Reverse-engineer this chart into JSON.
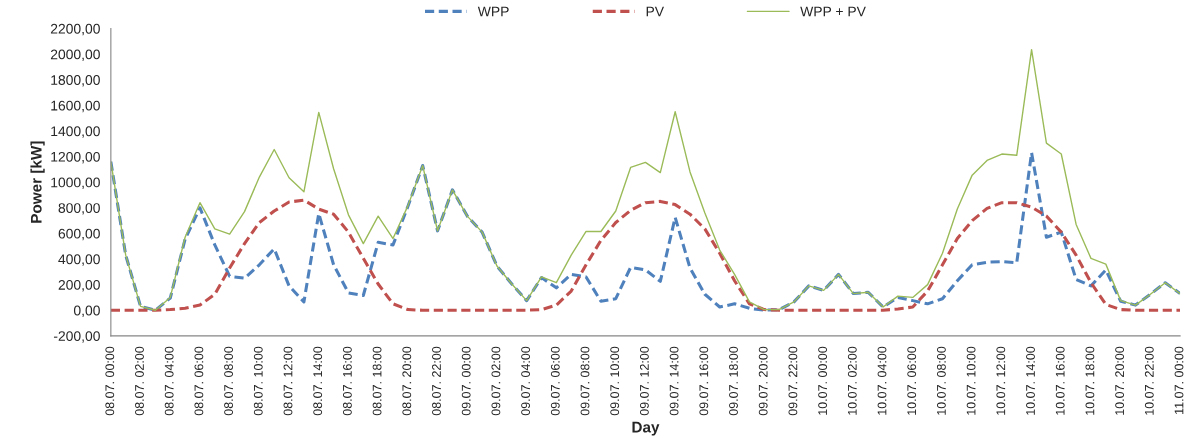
{
  "chart_data": {
    "type": "line",
    "xlabel": "Day",
    "ylabel": "Power [kW]",
    "categories": [
      "08.07. 00:00",
      null,
      "08.07. 02:00",
      null,
      "08.07. 04:00",
      null,
      "08.07. 06:00",
      null,
      "08.07. 08:00",
      null,
      "08.07. 10:00",
      null,
      "08.07. 12:00",
      null,
      "08.07. 14:00",
      null,
      "08.07. 16:00",
      null,
      "08.07. 18:00",
      null,
      "08.07. 20:00",
      null,
      "08.07. 22:00",
      null,
      "09.07. 00:00",
      null,
      "09.07. 02:00",
      null,
      "09.07. 04:00",
      null,
      "09.07. 06:00",
      null,
      "09.07. 08:00",
      null,
      "09.07. 10:00",
      null,
      "09.07. 12:00",
      null,
      "09.07. 14:00",
      null,
      "09.07. 16:00",
      null,
      "09.07. 18:00",
      null,
      "09.07. 20:00",
      null,
      "09.07. 22:00",
      null,
      "10.07. 00:00",
      null,
      "10.07. 02:00",
      null,
      "10.07. 04:00",
      null,
      "10.07. 06:00",
      null,
      "10.07. 08:00",
      null,
      "10.07. 10:00",
      null,
      "10.07. 12:00",
      null,
      "10.07. 14:00",
      null,
      "10.07. 16:00",
      null,
      "10.07. 18:00",
      null,
      "10.07. 20:00",
      null,
      "10.07. 22:00",
      null,
      "11.07. 00:00"
    ],
    "series": [
      {
        "name": "WPP",
        "color": "#4f81bd",
        "line_style": "dashed",
        "values": [
          1160,
          430,
          30,
          0,
          95,
          555,
          800,
          510,
          265,
          250,
          355,
          480,
          190,
          65,
          755,
          355,
          135,
          115,
          530,
          510,
          810,
          1130,
          620,
          940,
          735,
          610,
          345,
          205,
          75,
          255,
          175,
          280,
          260,
          70,
          90,
          335,
          315,
          225,
          725,
          330,
          125,
          25,
          50,
          15,
          0,
          5,
          65,
          190,
          155,
          280,
          130,
          140,
          25,
          100,
          75,
          50,
          90,
          230,
          355,
          375,
          380,
          370,
          1230,
          570,
          610,
          240,
          190,
          315,
          70,
          40,
          125,
          215,
          130
        ]
      },
      {
        "name": "PV",
        "color": "#c0504d",
        "line_style": "dashed",
        "values": [
          0,
          0,
          0,
          0,
          5,
          15,
          40,
          125,
          330,
          520,
          685,
          775,
          845,
          860,
          790,
          750,
          610,
          405,
          205,
          50,
          5,
          0,
          0,
          0,
          0,
          0,
          0,
          0,
          0,
          5,
          40,
          150,
          355,
          545,
          685,
          780,
          840,
          850,
          825,
          750,
          635,
          445,
          230,
          50,
          5,
          0,
          0,
          0,
          0,
          0,
          0,
          0,
          0,
          10,
          25,
          150,
          355,
          560,
          700,
          795,
          840,
          840,
          805,
          735,
          610,
          430,
          215,
          45,
          5,
          0,
          0,
          0,
          0
        ]
      },
      {
        "name": "WPP + PV",
        "color": "#9bbb59",
        "line_style": "solid",
        "values": [
          1160,
          430,
          30,
          0,
          100,
          570,
          840,
          635,
          595,
          770,
          1040,
          1255,
          1035,
          925,
          1545,
          1105,
          745,
          520,
          735,
          560,
          815,
          1130,
          620,
          940,
          735,
          610,
          345,
          205,
          75,
          260,
          215,
          430,
          615,
          615,
          775,
          1115,
          1155,
          1075,
          1550,
          1080,
          760,
          470,
          280,
          65,
          5,
          5,
          65,
          190,
          155,
          280,
          130,
          140,
          25,
          110,
          100,
          200,
          445,
          790,
          1055,
          1170,
          1220,
          1210,
          2035,
          1305,
          1220,
          670,
          405,
          360,
          75,
          40,
          125,
          215,
          130
        ]
      }
    ],
    "ylim": [
      -200,
      2200
    ],
    "yticks": [
      {
        "value": -200,
        "label": "-200,00"
      },
      {
        "value": 0,
        "label": "0,00"
      },
      {
        "value": 200,
        "label": "200,00"
      },
      {
        "value": 400,
        "label": "400,00"
      },
      {
        "value": 600,
        "label": "600,00"
      },
      {
        "value": 800,
        "label": "800,00"
      },
      {
        "value": 1000,
        "label": "1000,00"
      },
      {
        "value": 1200,
        "label": "1200,00"
      },
      {
        "value": 1400,
        "label": "1400,00"
      },
      {
        "value": 1600,
        "label": "1600,00"
      },
      {
        "value": 1800,
        "label": "1800,00"
      },
      {
        "value": 2000,
        "label": "2000,00"
      },
      {
        "value": 2200,
        "label": "2200,00"
      }
    ],
    "legend": "top"
  }
}
